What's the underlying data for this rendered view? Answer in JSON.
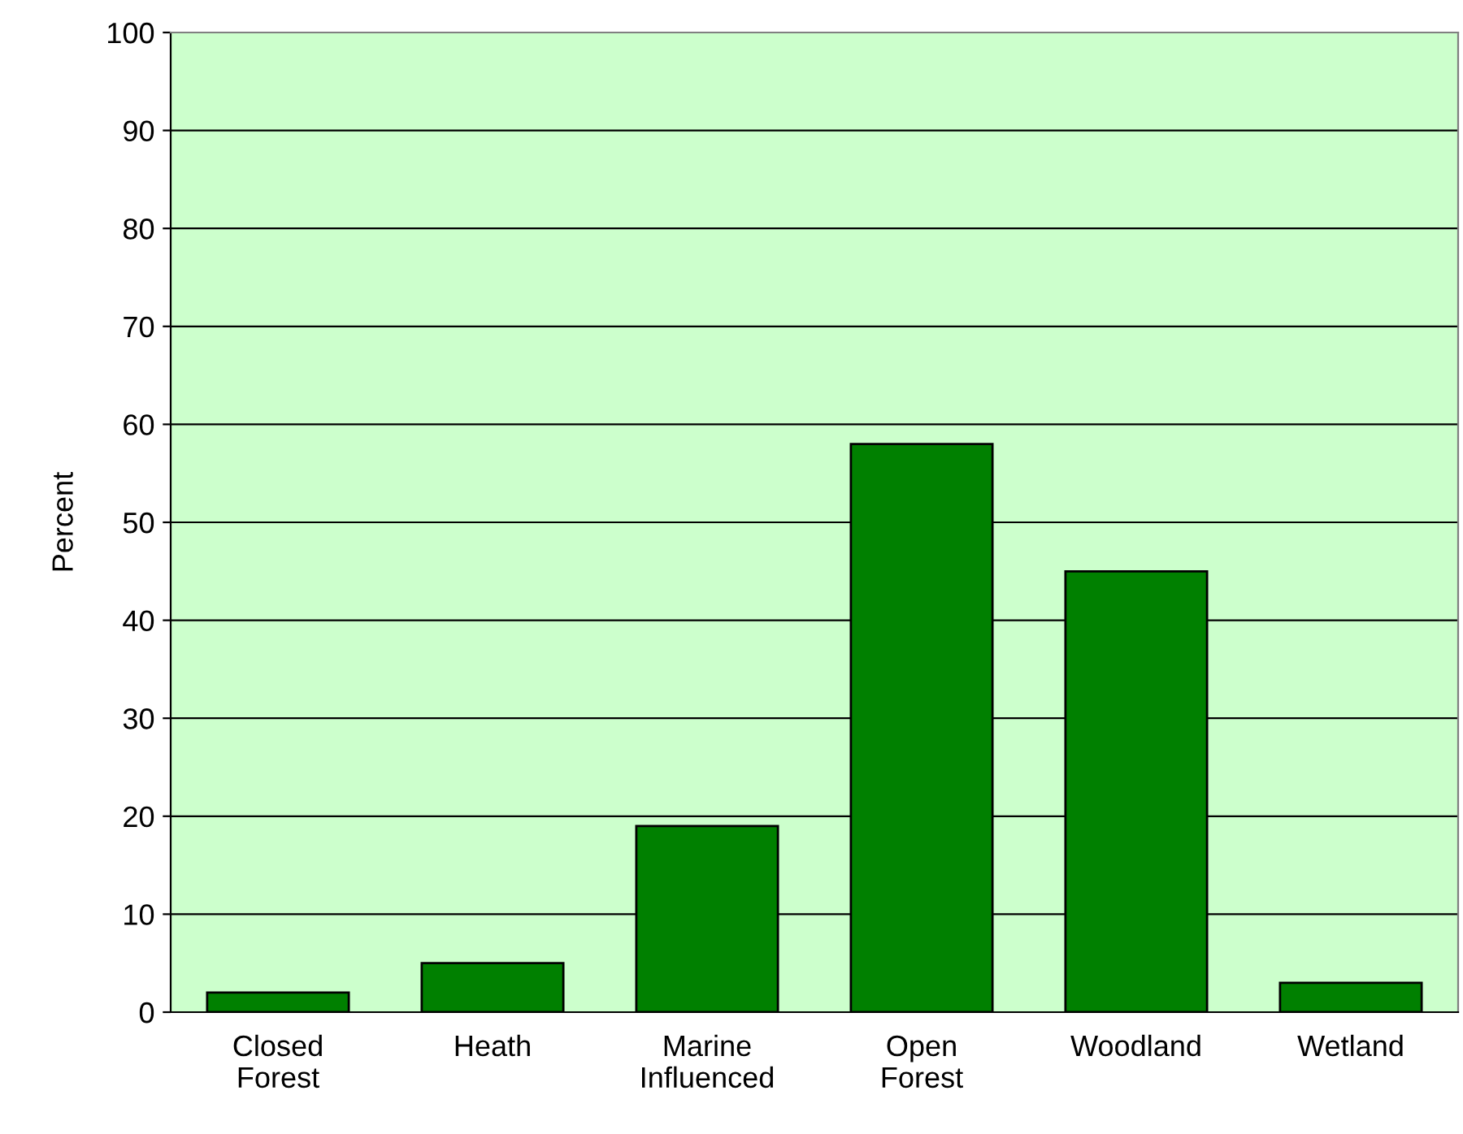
{
  "chart_data": {
    "type": "bar",
    "ylabel": "Percent",
    "categories": [
      "Closed\nForest",
      "Heath",
      "Marine\nInfluenced",
      "Open\nForest",
      "Woodland",
      "Wetland"
    ],
    "values": [
      2,
      5,
      19,
      58,
      45,
      3
    ],
    "color": "#008000",
    "ylim": [
      0,
      100
    ],
    "yticks": [
      0,
      10,
      20,
      30,
      40,
      50,
      60,
      70,
      80,
      90,
      100
    ],
    "grid": "y"
  }
}
